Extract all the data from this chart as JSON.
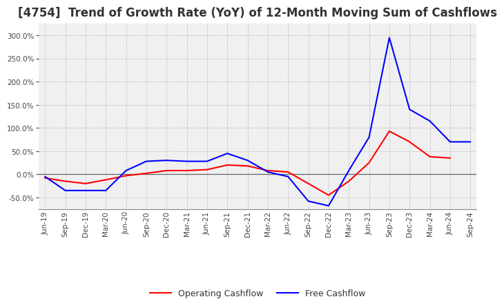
{
  "title": "[4754]  Trend of Growth Rate (YoY) of 12-Month Moving Sum of Cashflows",
  "title_fontsize": 12,
  "title_color": "#333333",
  "ylim": [
    -75,
    325
  ],
  "yticks": [
    -50,
    0,
    50,
    100,
    150,
    200,
    250,
    300
  ],
  "background_color": "#ffffff",
  "plot_bg_color": "#f0f0f0",
  "grid_color": "#aaaaaa",
  "legend_labels": [
    "Operating Cashflow",
    "Free Cashflow"
  ],
  "legend_colors": [
    "#ff0000",
    "#0000ff"
  ],
  "x_labels": [
    "Jun-19",
    "Sep-19",
    "Dec-19",
    "Mar-20",
    "Jun-20",
    "Sep-20",
    "Dec-20",
    "Mar-21",
    "Jun-21",
    "Sep-21",
    "Dec-21",
    "Mar-22",
    "Jun-22",
    "Sep-22",
    "Dec-22",
    "Mar-23",
    "Jun-23",
    "Sep-23",
    "Dec-23",
    "Mar-24",
    "Jun-24",
    "Sep-24"
  ],
  "operating_cashflow": [
    -8,
    -15,
    -20,
    -12,
    -3,
    2,
    8,
    8,
    10,
    20,
    18,
    8,
    5,
    -20,
    -45,
    -15,
    25,
    93,
    70,
    38,
    35,
    null
  ],
  "free_cashflow": [
    -5,
    -35,
    -35,
    -35,
    8,
    28,
    30,
    28,
    28,
    45,
    30,
    5,
    -5,
    -58,
    -68,
    8,
    80,
    295,
    140,
    115,
    70,
    70
  ]
}
